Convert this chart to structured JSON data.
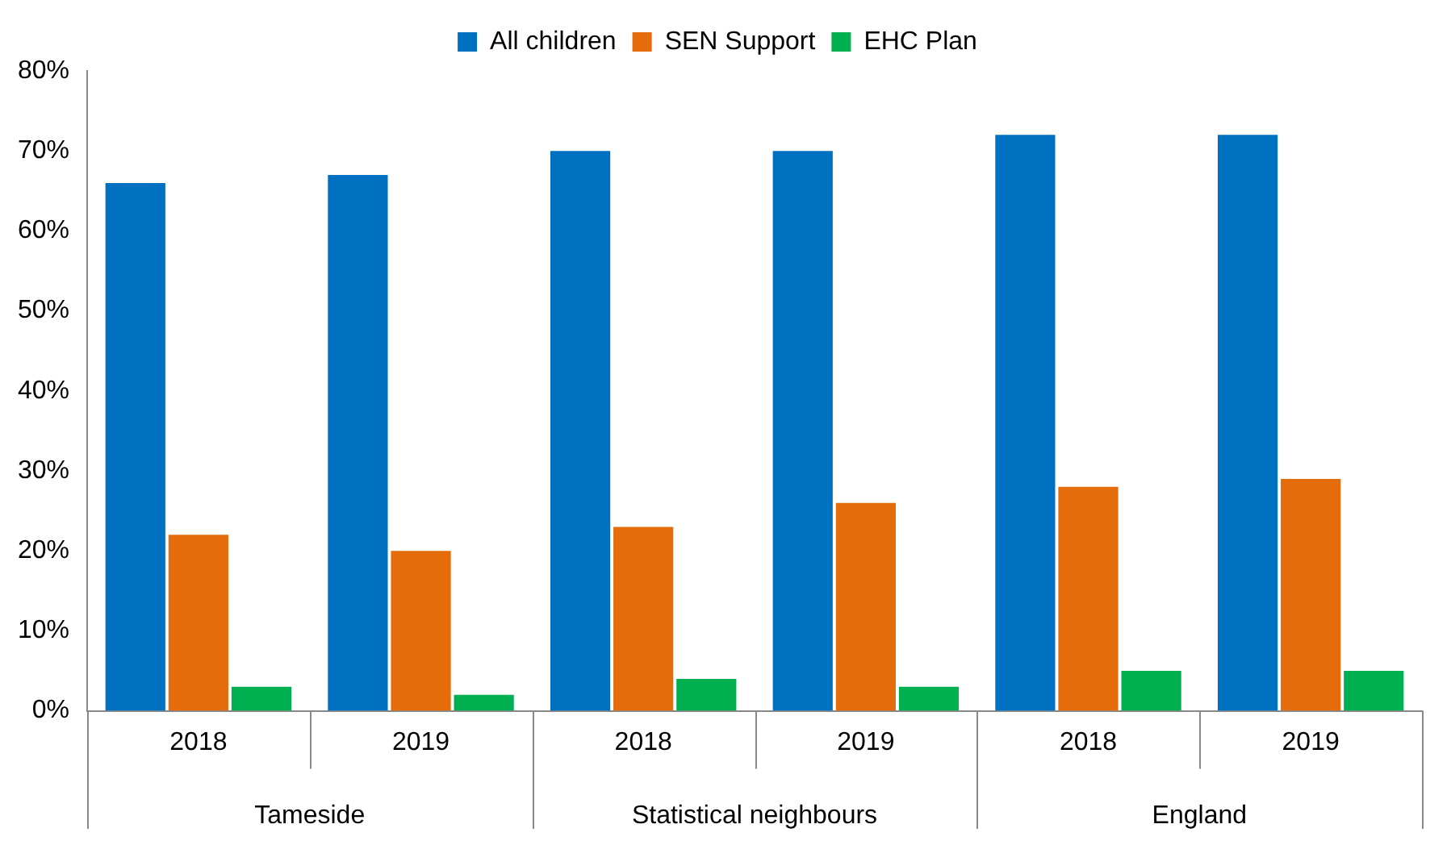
{
  "chart_data": {
    "type": "bar",
    "categories": [
      "2018",
      "2019",
      "2018",
      "2019",
      "2018",
      "2019"
    ],
    "series": [
      {
        "name": "All children",
        "color": "#0070c0",
        "values": [
          66,
          67,
          70,
          70,
          72,
          72
        ]
      },
      {
        "name": "SEN Support",
        "color": "#e46c0a",
        "values": [
          22,
          20,
          23,
          26,
          28,
          29
        ]
      },
      {
        "name": "EHC Plan",
        "color": "#00b050",
        "values": [
          3,
          2,
          4,
          3,
          5,
          5
        ]
      }
    ],
    "annotations": [
      "Tameside",
      "Statistical neighbours",
      "England"
    ],
    "ylim": [
      0,
      80
    ],
    "yticks": [
      {
        "value": 0,
        "label": "0%"
      },
      {
        "value": 10,
        "label": "10%"
      },
      {
        "value": 20,
        "label": "20%"
      },
      {
        "value": 30,
        "label": "30%"
      },
      {
        "value": 40,
        "label": "40%"
      },
      {
        "value": 50,
        "label": "50%"
      },
      {
        "value": 60,
        "label": "60%"
      },
      {
        "value": 70,
        "label": "70%"
      },
      {
        "value": 80,
        "label": "80%"
      }
    ],
    "grid": false,
    "legend": "top"
  }
}
